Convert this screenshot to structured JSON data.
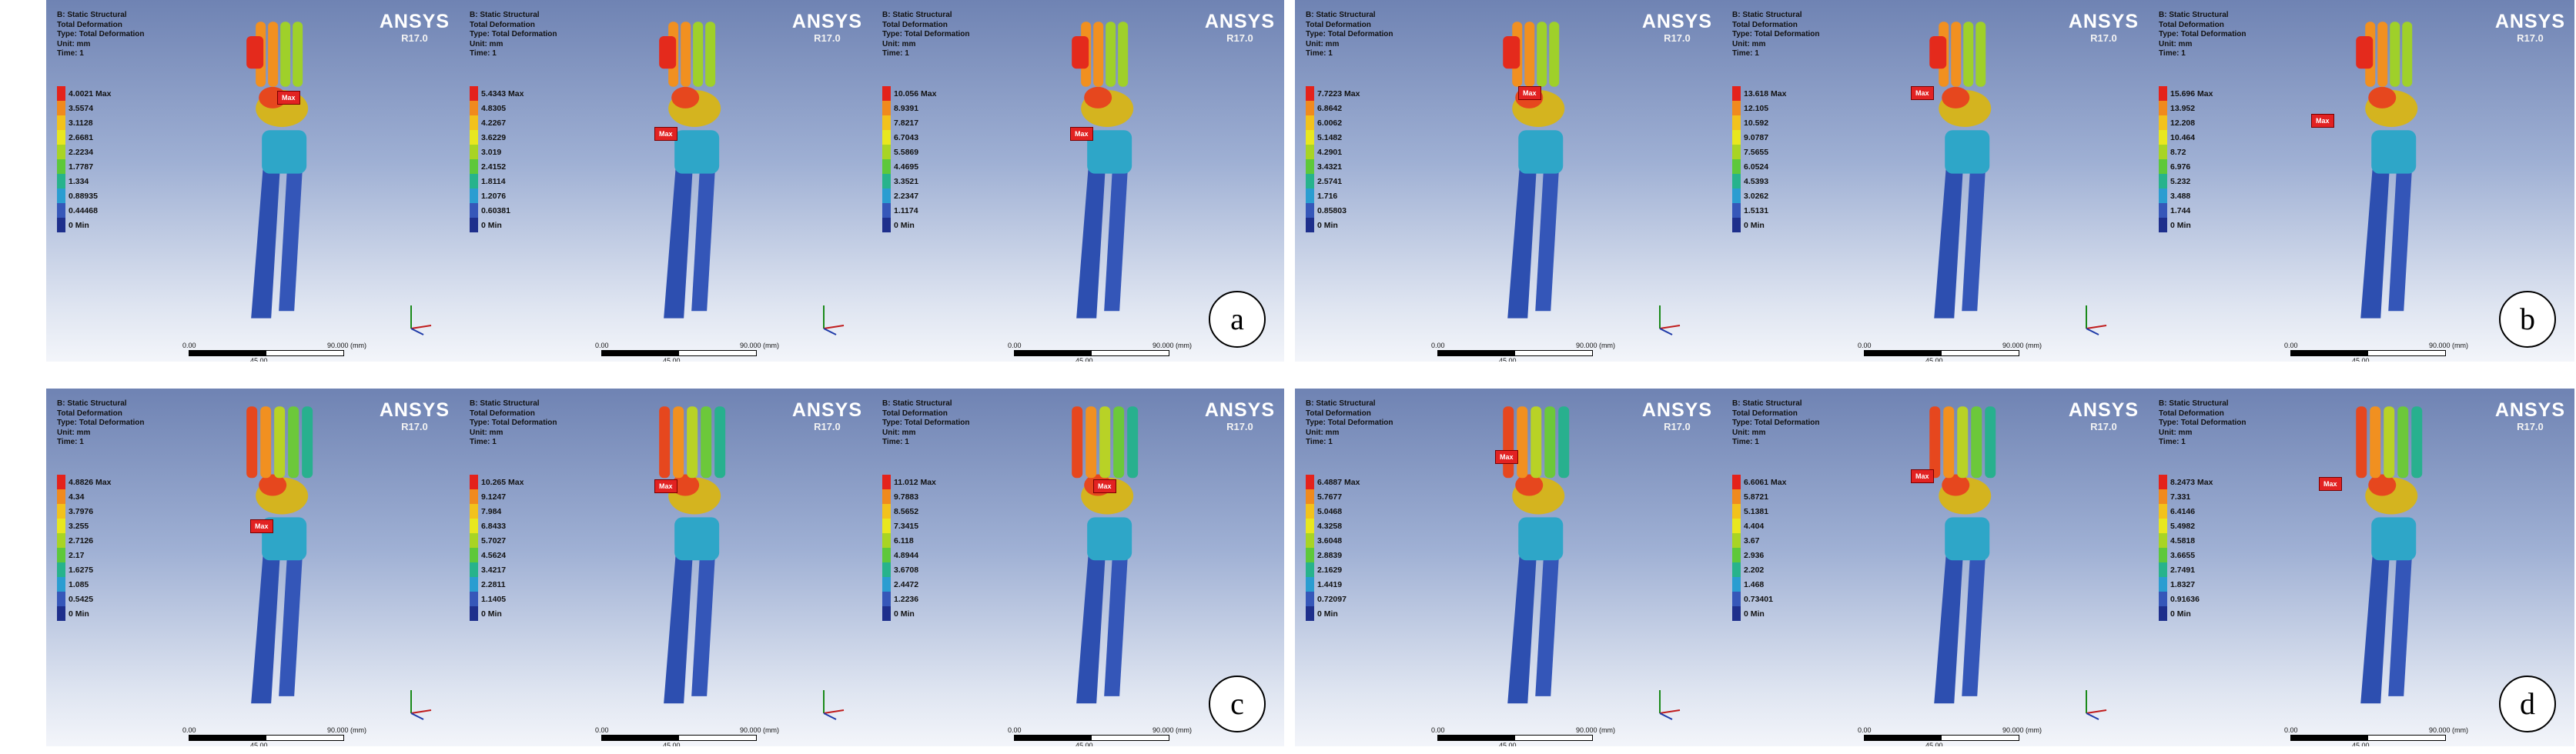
{
  "panels": [
    {
      "id": "a",
      "label": "a",
      "subs": [
        {
          "header": [
            "B: Static Structural",
            "Total Deformation",
            "Type: Total Deformation",
            "Unit: mm",
            "Time: 1"
          ],
          "ansys": "ANSYS",
          "version": "R17.0",
          "legend": [
            "4.0021 Max",
            "3.5574",
            "3.1128",
            "2.6681",
            "2.2234",
            "1.7787",
            "1.334",
            "0.88935",
            "0.44468"
          ],
          "legend_min": "0 Min",
          "max_tag": "Max",
          "scale": [
            "0.00",
            "45.00",
            "90.000 (mm)"
          ]
        },
        {
          "header": [
            "B: Static Structural",
            "Total Deformation",
            "Type: Total Deformation",
            "Unit: mm",
            "Time: 1"
          ],
          "ansys": "ANSYS",
          "version": "R17.0",
          "legend": [
            "5.4343 Max",
            "4.8305",
            "4.2267",
            "3.6229",
            "3.019",
            "2.4152",
            "1.8114",
            "1.2076",
            "0.60381"
          ],
          "legend_min": "0 Min",
          "max_tag": "Max",
          "scale": [
            "0.00",
            "45.00",
            "90.000 (mm)"
          ]
        },
        {
          "header": [
            "B: Static Structural",
            "Total Deformation",
            "Type: Total Deformation",
            "Unit: mm",
            "Time: 1"
          ],
          "ansys": "ANSYS",
          "version": "R17.0",
          "legend": [
            "10.056 Max",
            "8.9391",
            "7.8217",
            "6.7043",
            "5.5869",
            "4.4695",
            "3.3521",
            "2.2347",
            "1.1174"
          ],
          "legend_min": "0 Min",
          "max_tag": "Max",
          "scale": [
            "0.00",
            "45.00",
            "90.000 (mm)"
          ]
        }
      ]
    },
    {
      "id": "b",
      "label": "b",
      "subs": [
        {
          "header": [
            "B: Static Structural",
            "Total Deformation",
            "Type: Total Deformation",
            "Unit: mm",
            "Time: 1"
          ],
          "ansys": "ANSYS",
          "version": "R17.0",
          "legend": [
            "7.7223 Max",
            "6.8642",
            "6.0062",
            "5.1482",
            "4.2901",
            "3.4321",
            "2.5741",
            "1.716",
            "0.85803"
          ],
          "legend_min": "0 Min",
          "max_tag": "Max",
          "scale": [
            "0.00",
            "45.00",
            "90.000 (mm)"
          ]
        },
        {
          "header": [
            "B: Static Structural",
            "Total Deformation",
            "Type: Total Deformation",
            "Unit: mm",
            "Time: 1"
          ],
          "ansys": "ANSYS",
          "version": "R17.0",
          "legend": [
            "13.618 Max",
            "12.105",
            "10.592",
            "9.0787",
            "7.5655",
            "6.0524",
            "4.5393",
            "3.0262",
            "1.5131"
          ],
          "legend_min": "0 Min",
          "max_tag": "Max",
          "scale": [
            "0.00",
            "45.00",
            "90.000 (mm)"
          ]
        },
        {
          "header": [
            "B: Static Structural",
            "Total Deformation",
            "Type: Total Deformation",
            "Unit: mm",
            "Time: 1"
          ],
          "ansys": "ANSYS",
          "version": "R17.0",
          "legend": [
            "15.696 Max",
            "13.952",
            "12.208",
            "10.464",
            "8.72",
            "6.976",
            "5.232",
            "3.488",
            "1.744"
          ],
          "legend_min": "0 Min",
          "max_tag": "Max",
          "scale": [
            "0.00",
            "45.00",
            "90.000 (mm)"
          ]
        }
      ]
    },
    {
      "id": "c",
      "label": "c",
      "subs": [
        {
          "header": [
            "B: Static Structural",
            "Total Deformation",
            "Type: Total Deformation",
            "Unit: mm",
            "Time: 1"
          ],
          "ansys": "ANSYS",
          "version": "R17.0",
          "legend": [
            "4.8826 Max",
            "4.34",
            "3.7976",
            "3.255",
            "2.7126",
            "2.17",
            "1.6275",
            "1.085",
            "0.5425"
          ],
          "legend_min": "0 Min",
          "max_tag": "Max",
          "scale": [
            "0.00",
            "45.00",
            "90.000 (mm)"
          ]
        },
        {
          "header": [
            "B: Static Structural",
            "Total Deformation",
            "Type: Total Deformation",
            "Unit: mm",
            "Time: 1"
          ],
          "ansys": "ANSYS",
          "version": "R17.0",
          "legend": [
            "10.265 Max",
            "9.1247",
            "7.984",
            "6.8433",
            "5.7027",
            "4.5624",
            "3.4217",
            "2.2811",
            "1.1405"
          ],
          "legend_min": "0 Min",
          "max_tag": "Max",
          "scale": [
            "0.00",
            "45.00",
            "90.000 (mm)"
          ]
        },
        {
          "header": [
            "B: Static Structural",
            "Total Deformation",
            "Type: Total Deformation",
            "Unit: mm",
            "Time: 1"
          ],
          "ansys": "ANSYS",
          "version": "R17.0",
          "legend": [
            "11.012 Max",
            "9.7883",
            "8.5652",
            "7.3415",
            "6.118",
            "4.8944",
            "3.6708",
            "2.4472",
            "1.2236"
          ],
          "legend_min": "0 Min",
          "max_tag": "Max",
          "scale": [
            "0.00",
            "45.00",
            "90.000 (mm)"
          ]
        }
      ]
    },
    {
      "id": "d",
      "label": "d",
      "subs": [
        {
          "header": [
            "B: Static Structural",
            "Total Deformation",
            "Type: Total Deformation",
            "Unit: mm",
            "Time: 1"
          ],
          "ansys": "ANSYS",
          "version": "R17.0",
          "legend": [
            "6.4887 Max",
            "5.7677",
            "5.0468",
            "4.3258",
            "3.6048",
            "2.8839",
            "2.1629",
            "1.4419",
            "0.72097"
          ],
          "legend_min": "0 Min",
          "max_tag": "Max",
          "scale": [
            "0.00",
            "45.00",
            "90.000 (mm)"
          ]
        },
        {
          "header": [
            "B: Static Structural",
            "Total Deformation",
            "Type: Total Deformation",
            "Unit: mm",
            "Time: 1"
          ],
          "ansys": "ANSYS",
          "version": "R17.0",
          "legend": [
            "6.6061 Max",
            "5.8721",
            "5.1381",
            "4.404",
            "3.67",
            "2.936",
            "2.202",
            "1.468",
            "0.73401"
          ],
          "legend_min": "0 Min",
          "max_tag": "Max",
          "scale": [
            "0.00",
            "45.00",
            "90.000 (mm)"
          ]
        },
        {
          "header": [
            "B: Static Structural",
            "Total Deformation",
            "Type: Total Deformation",
            "Unit: mm",
            "Time: 1"
          ],
          "ansys": "ANSYS",
          "version": "R17.0",
          "legend": [
            "8.2473 Max",
            "7.331",
            "6.4146",
            "5.4982",
            "4.5818",
            "3.6655",
            "2.7491",
            "1.8327",
            "0.91636"
          ],
          "legend_min": "0 Min",
          "max_tag": "Max",
          "scale": [
            "0.00",
            "45.00",
            "90.000 (mm)"
          ]
        }
      ]
    }
  ],
  "legend_colors": [
    "#e4221b",
    "#f08a1d",
    "#f2c21c",
    "#e8e71f",
    "#a8d424",
    "#5ec83a",
    "#27b38c",
    "#2a9dd1",
    "#3657b9",
    "#1e2f8c"
  ]
}
